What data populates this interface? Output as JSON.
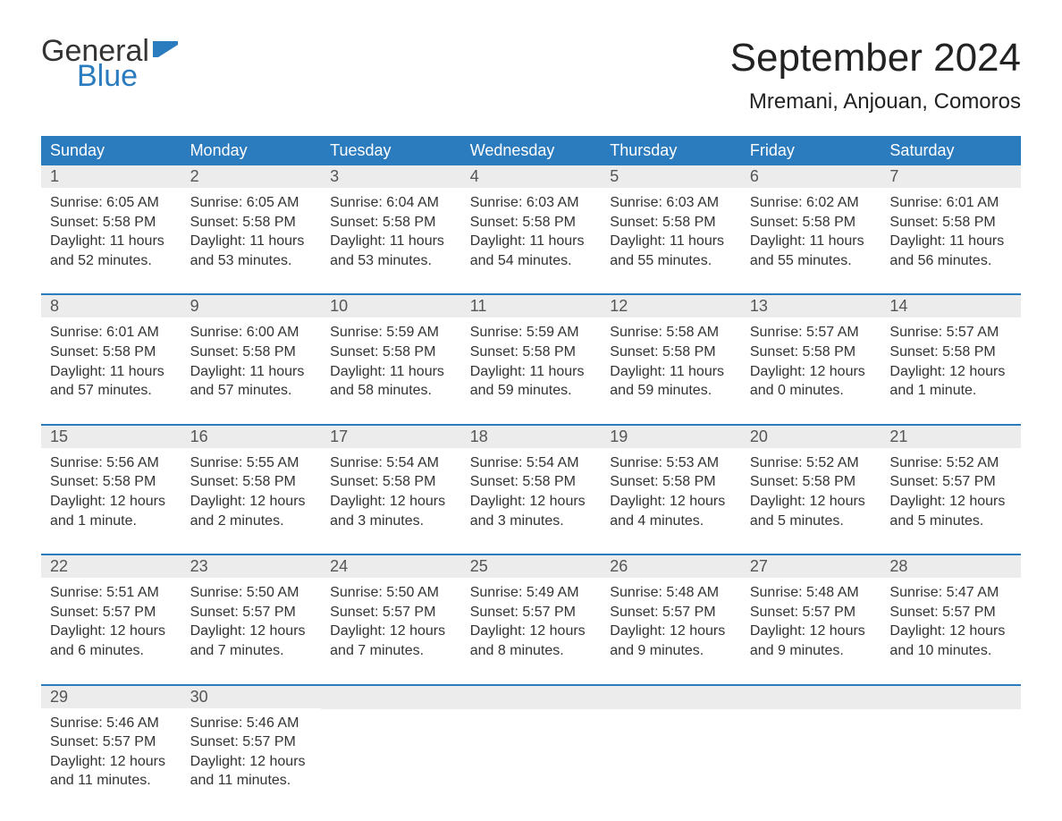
{
  "logo": {
    "word1": "General",
    "word2": "Blue",
    "text_color": "#333333",
    "accent_color": "#2b7bbf"
  },
  "title": "September 2024",
  "location": "Mremani, Anjouan, Comoros",
  "header_bg": "#2b7bbf",
  "header_fg": "#ffffff",
  "daynum_bg": "#ececec",
  "week_border": "#2b7bbf",
  "background": "#ffffff",
  "title_fontsize": 44,
  "location_fontsize": 24,
  "header_fontsize": 18,
  "body_fontsize": 16,
  "days_of_week": [
    "Sunday",
    "Monday",
    "Tuesday",
    "Wednesday",
    "Thursday",
    "Friday",
    "Saturday"
  ],
  "labels": {
    "sunrise": "Sunrise:",
    "sunset": "Sunset:",
    "daylight": "Daylight:"
  },
  "weeks": [
    [
      {
        "n": "1",
        "sunrise": "6:05 AM",
        "sunset": "5:58 PM",
        "daylight": "11 hours and 52 minutes."
      },
      {
        "n": "2",
        "sunrise": "6:05 AM",
        "sunset": "5:58 PM",
        "daylight": "11 hours and 53 minutes."
      },
      {
        "n": "3",
        "sunrise": "6:04 AM",
        "sunset": "5:58 PM",
        "daylight": "11 hours and 53 minutes."
      },
      {
        "n": "4",
        "sunrise": "6:03 AM",
        "sunset": "5:58 PM",
        "daylight": "11 hours and 54 minutes."
      },
      {
        "n": "5",
        "sunrise": "6:03 AM",
        "sunset": "5:58 PM",
        "daylight": "11 hours and 55 minutes."
      },
      {
        "n": "6",
        "sunrise": "6:02 AM",
        "sunset": "5:58 PM",
        "daylight": "11 hours and 55 minutes."
      },
      {
        "n": "7",
        "sunrise": "6:01 AM",
        "sunset": "5:58 PM",
        "daylight": "11 hours and 56 minutes."
      }
    ],
    [
      {
        "n": "8",
        "sunrise": "6:01 AM",
        "sunset": "5:58 PM",
        "daylight": "11 hours and 57 minutes."
      },
      {
        "n": "9",
        "sunrise": "6:00 AM",
        "sunset": "5:58 PM",
        "daylight": "11 hours and 57 minutes."
      },
      {
        "n": "10",
        "sunrise": "5:59 AM",
        "sunset": "5:58 PM",
        "daylight": "11 hours and 58 minutes."
      },
      {
        "n": "11",
        "sunrise": "5:59 AM",
        "sunset": "5:58 PM",
        "daylight": "11 hours and 59 minutes."
      },
      {
        "n": "12",
        "sunrise": "5:58 AM",
        "sunset": "5:58 PM",
        "daylight": "11 hours and 59 minutes."
      },
      {
        "n": "13",
        "sunrise": "5:57 AM",
        "sunset": "5:58 PM",
        "daylight": "12 hours and 0 minutes."
      },
      {
        "n": "14",
        "sunrise": "5:57 AM",
        "sunset": "5:58 PM",
        "daylight": "12 hours and 1 minute."
      }
    ],
    [
      {
        "n": "15",
        "sunrise": "5:56 AM",
        "sunset": "5:58 PM",
        "daylight": "12 hours and 1 minute."
      },
      {
        "n": "16",
        "sunrise": "5:55 AM",
        "sunset": "5:58 PM",
        "daylight": "12 hours and 2 minutes."
      },
      {
        "n": "17",
        "sunrise": "5:54 AM",
        "sunset": "5:58 PM",
        "daylight": "12 hours and 3 minutes."
      },
      {
        "n": "18",
        "sunrise": "5:54 AM",
        "sunset": "5:58 PM",
        "daylight": "12 hours and 3 minutes."
      },
      {
        "n": "19",
        "sunrise": "5:53 AM",
        "sunset": "5:58 PM",
        "daylight": "12 hours and 4 minutes."
      },
      {
        "n": "20",
        "sunrise": "5:52 AM",
        "sunset": "5:58 PM",
        "daylight": "12 hours and 5 minutes."
      },
      {
        "n": "21",
        "sunrise": "5:52 AM",
        "sunset": "5:57 PM",
        "daylight": "12 hours and 5 minutes."
      }
    ],
    [
      {
        "n": "22",
        "sunrise": "5:51 AM",
        "sunset": "5:57 PM",
        "daylight": "12 hours and 6 minutes."
      },
      {
        "n": "23",
        "sunrise": "5:50 AM",
        "sunset": "5:57 PM",
        "daylight": "12 hours and 7 minutes."
      },
      {
        "n": "24",
        "sunrise": "5:50 AM",
        "sunset": "5:57 PM",
        "daylight": "12 hours and 7 minutes."
      },
      {
        "n": "25",
        "sunrise": "5:49 AM",
        "sunset": "5:57 PM",
        "daylight": "12 hours and 8 minutes."
      },
      {
        "n": "26",
        "sunrise": "5:48 AM",
        "sunset": "5:57 PM",
        "daylight": "12 hours and 9 minutes."
      },
      {
        "n": "27",
        "sunrise": "5:48 AM",
        "sunset": "5:57 PM",
        "daylight": "12 hours and 9 minutes."
      },
      {
        "n": "28",
        "sunrise": "5:47 AM",
        "sunset": "5:57 PM",
        "daylight": "12 hours and 10 minutes."
      }
    ],
    [
      {
        "n": "29",
        "sunrise": "5:46 AM",
        "sunset": "5:57 PM",
        "daylight": "12 hours and 11 minutes."
      },
      {
        "n": "30",
        "sunrise": "5:46 AM",
        "sunset": "5:57 PM",
        "daylight": "12 hours and 11 minutes."
      },
      null,
      null,
      null,
      null,
      null
    ]
  ]
}
